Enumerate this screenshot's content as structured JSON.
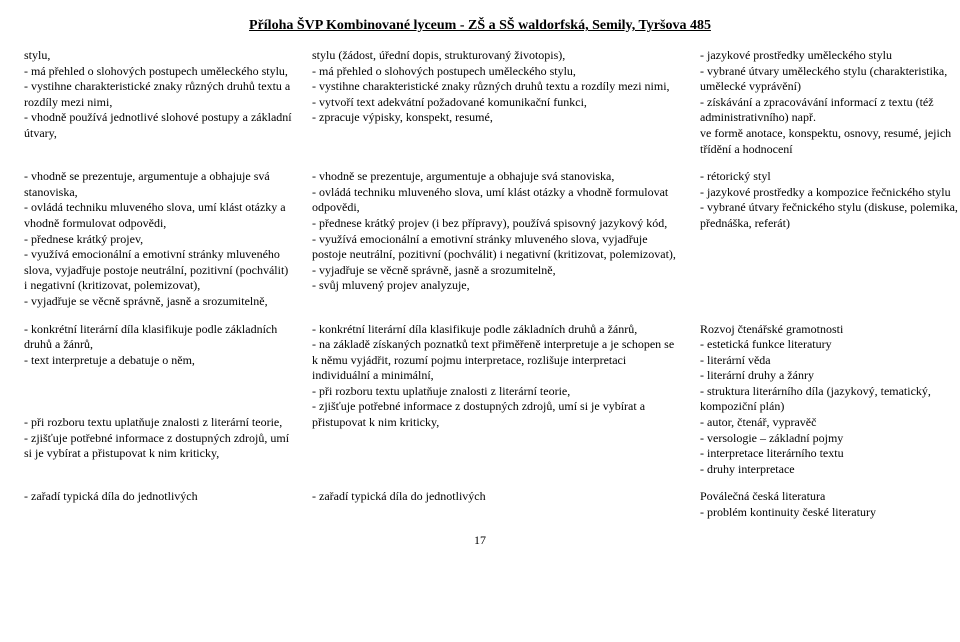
{
  "title": "Příloha ŠVP Kombinované lyceum - ZŠ a SŠ waldorfská, Semily, Tyršova 485",
  "page_num": "17",
  "rows": [
    {
      "c1": "stylu,\n- má přehled o slohových postupech uměleckého stylu,\n- vystihne charakteristické znaky různých druhů textu a rozdíly mezi nimi,\n- vhodně používá jednotlivé slohové postupy a základní útvary,",
      "c2": "stylu (žádost, úřední dopis, strukturovaný životopis),\n- má přehled o slohových postupech uměleckého stylu,\n- vystihne charakteristické znaky různých druhů textu a rozdíly mezi nimi,\n- vytvoří text adekvátní požadované komunikační funkci,\n- zpracuje výpisky, konspekt, resumé,",
      "c3": "- jazykové prostředky uměleckého stylu\n- vybrané útvary uměleckého stylu (charakteristika, umělecké vyprávění)\n- získávání a zpracovávání informací z textu (též administrativního) např.\nve formě anotace, konspektu, osnovy, resumé, jejich třídění a hodnocení"
    },
    {
      "c1": "- vhodně se prezentuje, argumentuje a obhajuje svá stanoviska,\n- ovládá techniku mluveného slova, umí klást otázky a vhodně formulovat odpovědi,\n- přednese krátký projev,\n- využívá emocionální a emotivní stránky mluveného slova, vyjadřuje postoje neutrální, pozitivní (pochválit) i negativní (kritizovat, polemizovat),\n- vyjadřuje se věcně správně, jasně a srozumitelně,",
      "c2": "- vhodně se prezentuje, argumentuje a obhajuje svá stanoviska,\n- ovládá techniku mluveného slova, umí klást otázky a vhodně formulovat odpovědi,\n- přednese krátký projev (i bez přípravy), používá spisovný jazykový kód,\n- využívá emocionální a emotivní stránky mluveného slova, vyjadřuje postoje neutrální, pozitivní (pochválit) i negativní (kritizovat, polemizovat),\n- vyjadřuje se věcně správně, jasně a srozumitelně,\n- svůj mluvený projev analyzuje,",
      "c3": "- rétorický styl\n- jazykové prostředky a kompozice řečnického stylu\n- vybrané útvary řečnického stylu (diskuse, polemika, přednáška, referát)"
    },
    {
      "c1": "- konkrétní literární díla klasifikuje podle základních druhů a žánrů,\n- text interpretuje a debatuje o něm,\n\n\n\n- při rozboru textu uplatňuje znalosti z literární teorie,\n- zjišťuje potřebné informace z dostupných zdrojů, umí si je vybírat a přistupovat k nim kriticky,",
      "c2": "- konkrétní literární díla klasifikuje podle základních druhů a žánrů,\n- na základě získaných poznatků text přiměřeně interpretuje a je schopen se k němu vyjádřit, rozumí pojmu interpretace, rozlišuje interpretaci individuální a minimální,\n- při rozboru textu uplatňuje znalosti z literární teorie,\n- zjišťuje potřebné informace z dostupných zdrojů, umí si je vybírat a přistupovat k nim kriticky,",
      "c3": "Rozvoj čtenářské gramotnosti\n- estetická funkce literatury\n- literární věda\n- literární druhy a žánry\n- struktura literárního díla (jazykový, tematický, kompoziční plán)\n- autor, čtenář, vypravěč\n- versologie – základní pojmy\n- interpretace literárního textu\n- druhy interpretace"
    },
    {
      "c1": "- zařadí typická díla do jednotlivých",
      "c2": "- zařadí typická díla do jednotlivých",
      "c3": "Poválečná česká literatura\n- problém kontinuity české literatury"
    }
  ]
}
